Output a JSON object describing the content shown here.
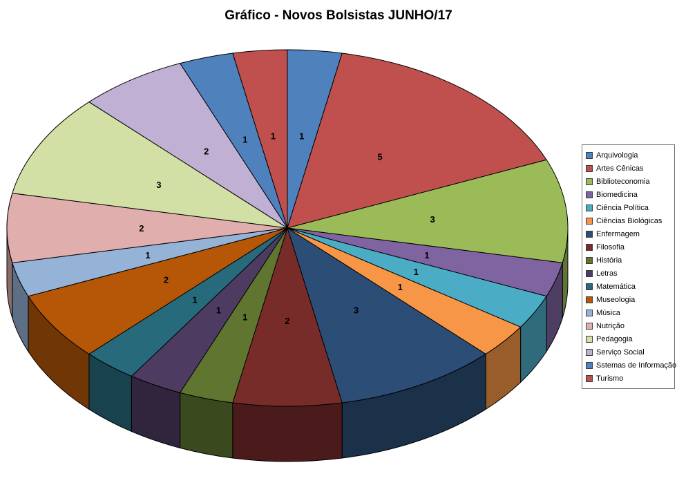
{
  "chart_data": {
    "type": "pie",
    "title": "Gráfico - Novos Bolsistas JUNHO/17",
    "legend_position": "right",
    "labels_shown": "values",
    "style": "3d-pie",
    "categories": [
      "Arquivologia",
      "Artes Cênicas",
      "Biblioteconomia",
      "Biomedicina",
      "Ciência Política",
      "Ciências Biológicas",
      "Enfermagem",
      "Filosofia",
      "História",
      "Letras",
      "Matemática",
      "Museologia",
      "Música",
      "Nutrição",
      "Pedagogia",
      "Serviço Social",
      "Sstemas de Informação",
      "Turismo"
    ],
    "values": [
      1,
      5,
      3,
      1,
      1,
      1,
      3,
      2,
      1,
      1,
      1,
      2,
      1,
      2,
      3,
      2,
      1,
      1
    ],
    "colors": [
      "#4F81BD",
      "#C0504D",
      "#9BBB59",
      "#8064A2",
      "#4BACC6",
      "#F79646",
      "#2C4D75",
      "#772C2A",
      "#5F7530",
      "#4D3B62",
      "#276A7C",
      "#B65708",
      "#95B3D7",
      "#E0AEAD",
      "#D3E0A5",
      "#C0B1D4",
      "#4F81BD",
      "#C0504D"
    ]
  }
}
